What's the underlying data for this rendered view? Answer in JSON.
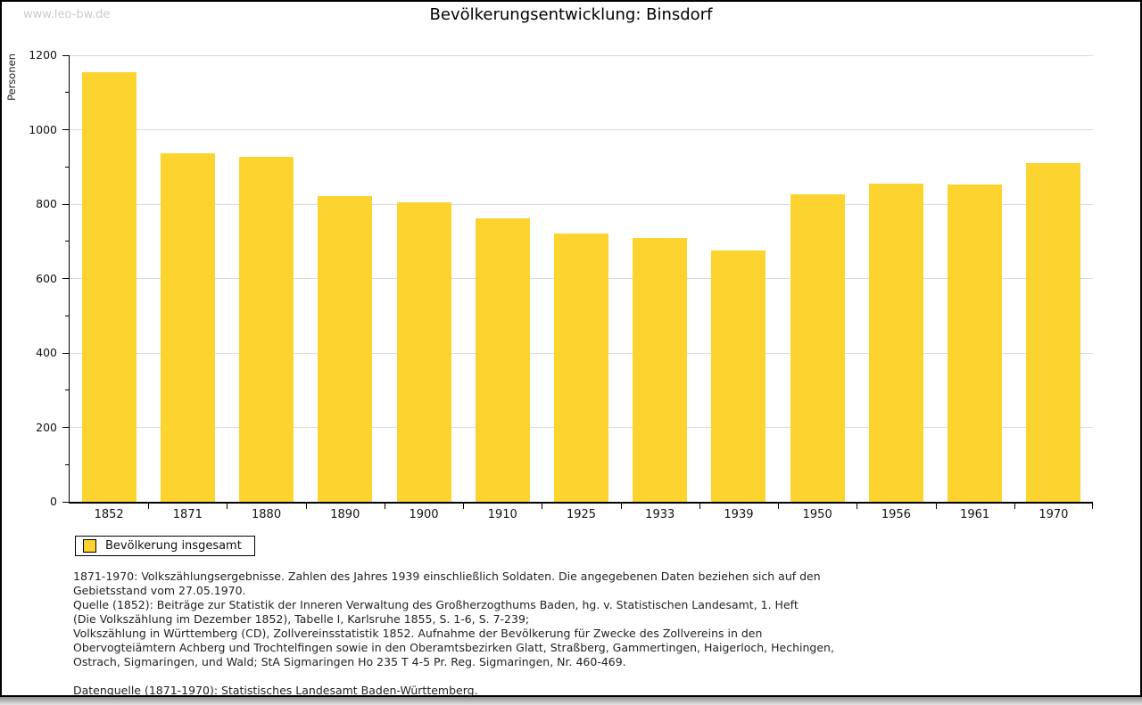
{
  "watermark": "www.leo-bw.de",
  "title": "Bevölkerungsentwicklung: Binsdorf",
  "legend": {
    "label": "Bevölkerung insgesamt"
  },
  "colors": {
    "bar": "#fdd32f",
    "grid": "#d9d9d9",
    "axis": "#000000",
    "watermark": "#cccccc"
  },
  "chart_data": {
    "type": "bar",
    "title": "Bevölkerungsentwicklung: Binsdorf",
    "categories": [
      "1852",
      "1871",
      "1880",
      "1890",
      "1900",
      "1910",
      "1925",
      "1933",
      "1939",
      "1950",
      "1956",
      "1961",
      "1970"
    ],
    "values": [
      1154,
      937,
      927,
      822,
      805,
      762,
      722,
      710,
      675,
      827,
      855,
      853,
      911
    ],
    "series_name": "Bevölkerung insgesamt",
    "xlabel": "",
    "ylabel": "Personen",
    "ylim": [
      0,
      1200
    ],
    "yticks": [
      0,
      200,
      400,
      600,
      800,
      1000,
      1200
    ],
    "ytick_minor_step": 100,
    "grid": true,
    "legend_position": "below-left"
  },
  "notes": {
    "lines": [
      "1871-1970: Volkszählungsergebnisse. Zahlen des Jahres 1939 einschließlich Soldaten. Die angegebenen Daten beziehen sich auf den",
      "Gebietsstand vom 27.05.1970.",
      "Quelle (1852): Beiträge zur Statistik der Inneren Verwaltung des Großherzogthums Baden, hg. v. Statistischen Landesamt, 1. Heft",
      "(Die Volkszählung im Dezember 1852), Tabelle I, Karlsruhe 1855, S. 1-6, S. 7-239;",
      "Volkszählung in Württemberg (CD), Zollvereinsstatistik 1852. Aufnahme der Bevölkerung für Zwecke des Zollvereins in den",
      "Obervogteiämtern Achberg und Trochtelfingen sowie in den Oberamtsbezirken Glatt, Straßberg, Gammertingen, Haigerloch, Hechingen,",
      "Ostrach, Sigmaringen, und Wald; StA Sigmaringen Ho 235 T 4-5 Pr. Reg. Sigmaringen, Nr. 460-469."
    ],
    "datasource": "Datenquelle (1871-1970): Statistisches Landesamt Baden-Württemberg."
  }
}
